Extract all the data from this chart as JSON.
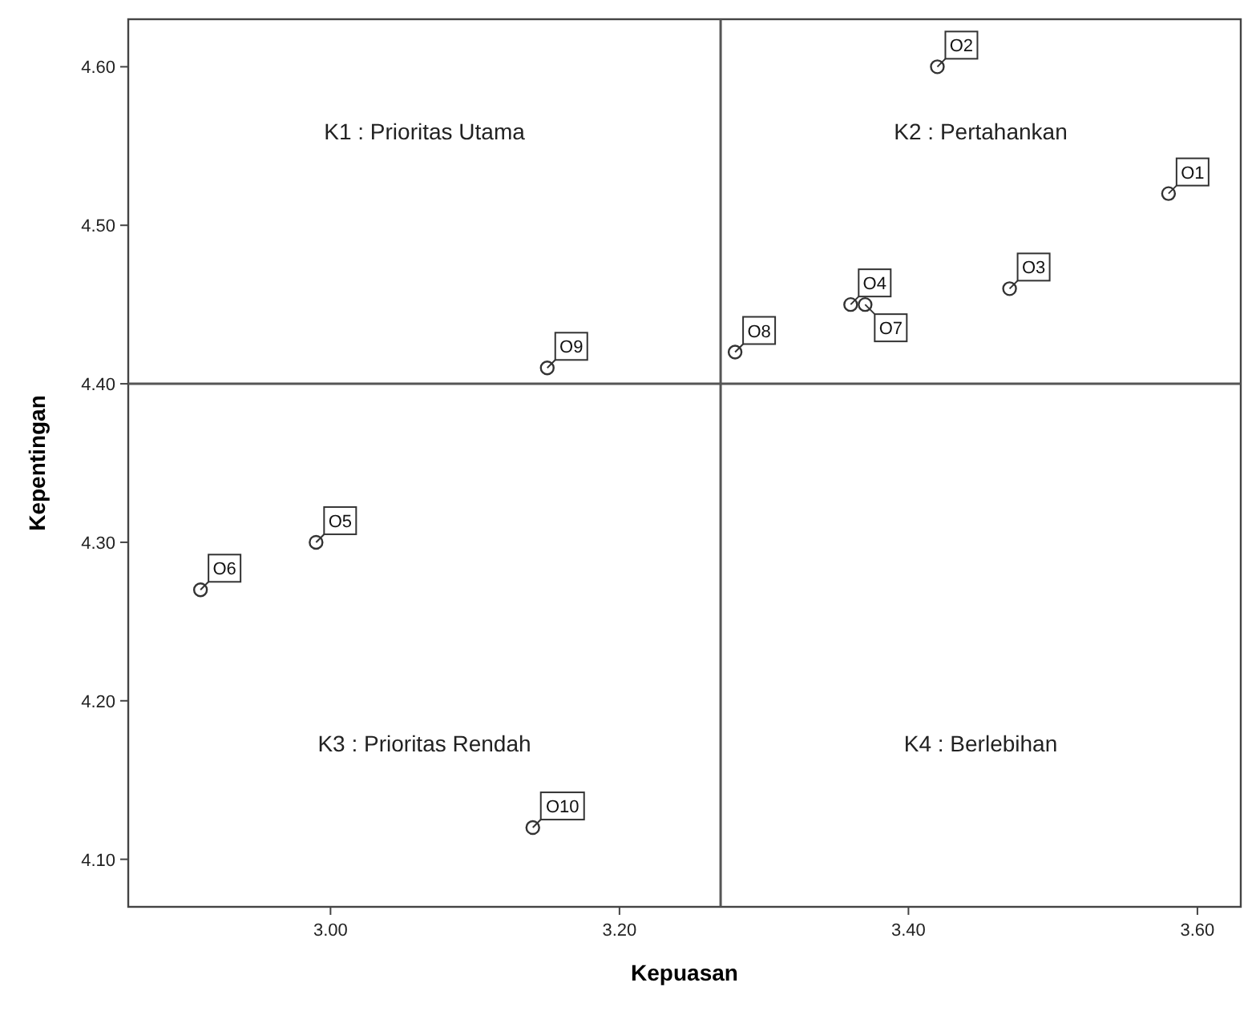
{
  "chart_data": {
    "type": "scatter",
    "xlabel": "Kepuasan",
    "ylabel": "Kepentingan",
    "x": [
      3.58,
      3.42,
      3.47,
      3.36,
      2.99,
      2.91,
      3.37,
      3.28,
      3.15,
      3.14
    ],
    "series": [
      {
        "color": "#333333",
        "values": [
          4.52,
          4.6,
          4.46,
          4.45,
          4.3,
          4.27,
          4.45,
          4.42,
          4.41,
          4.12
        ]
      }
    ],
    "xlim": [
      2.86,
      3.63
    ],
    "xticks": [
      {
        "value": 3.0,
        "label": "3.00"
      },
      {
        "value": 3.2,
        "label": "3.20"
      },
      {
        "value": 3.4,
        "label": "3.40"
      },
      {
        "value": 3.6,
        "label": "3.60"
      }
    ],
    "ylim": [
      4.07,
      4.63
    ],
    "yticks": [
      {
        "value": 4.1,
        "label": "4.10"
      },
      {
        "value": 4.2,
        "label": "4.20"
      },
      {
        "value": 4.3,
        "label": "4.30"
      },
      {
        "value": 4.4,
        "label": "4.40"
      },
      {
        "value": 4.5,
        "label": "4.50"
      },
      {
        "value": 4.6,
        "label": "4.60"
      }
    ],
    "ref_lines": [
      {
        "axis": "x",
        "value": 3.27
      },
      {
        "axis": "y",
        "value": 4.4
      }
    ],
    "marker": "circle",
    "grid": false,
    "annotations": [
      "K1 : Prioritas Utama",
      "K2 : Pertahankan",
      "K3 : Prioritas Rendah",
      "K4 : Berlebihan",
      {
        "text": "O1",
        "x": 3.58,
        "y": 4.52
      },
      {
        "text": "O2",
        "x": 3.42,
        "y": 4.6
      },
      {
        "text": "O3",
        "x": 3.47,
        "y": 4.46
      },
      {
        "text": "O4",
        "x": 3.36,
        "y": 4.45
      },
      {
        "text": "O5",
        "x": 2.99,
        "y": 4.3
      },
      {
        "text": "O6",
        "x": 2.91,
        "y": 4.27
      },
      {
        "text": "O7",
        "x": 3.37,
        "y": 4.45
      },
      {
        "text": "O8",
        "x": 3.28,
        "y": 4.42
      },
      {
        "text": "O9",
        "x": 3.15,
        "y": 4.41
      },
      {
        "text": "O10",
        "x": 3.14,
        "y": 4.12
      }
    ]
  }
}
